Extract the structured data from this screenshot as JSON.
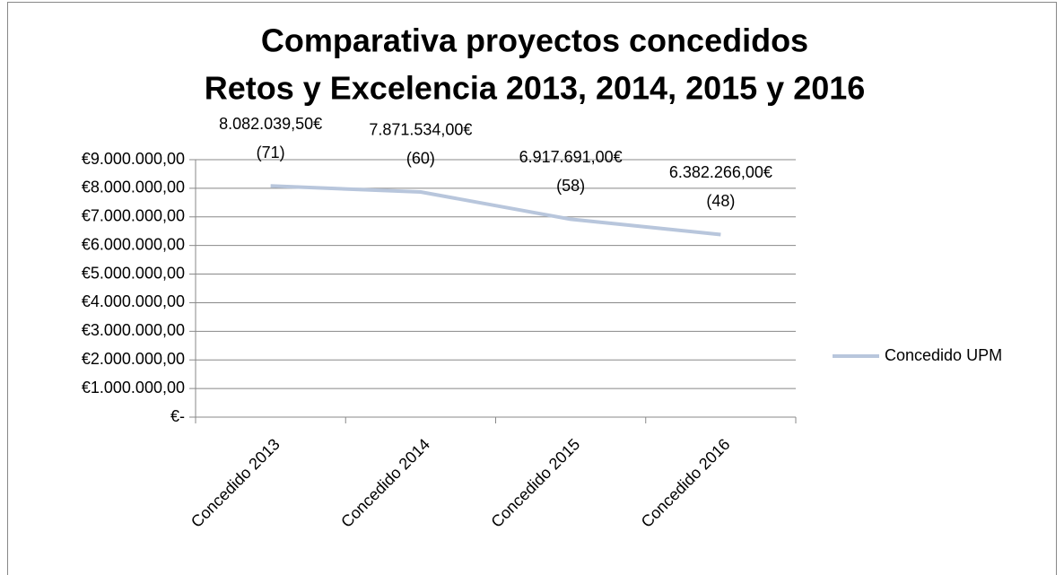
{
  "chart_data": {
    "type": "line",
    "title": [
      "Comparativa proyectos concedidos",
      "Retos y Excelencia 2013, 2014, 2015 y 2016"
    ],
    "categories": [
      "Concedido 2013",
      "Concedido 2014",
      "Concedido 2015",
      "Concedido 2016"
    ],
    "series": [
      {
        "name": "Concedido UPM",
        "color": "#b8c6dc",
        "values": [
          8082039.5,
          7871534,
          6917691,
          6382266
        ],
        "value_labels": [
          [
            "8.082.039,50€",
            "(71)"
          ],
          [
            "7.871.534,00€",
            "(60)"
          ],
          [
            "6.917.691,00€",
            "(58)"
          ],
          [
            "6.382.266,00€",
            "(48)"
          ]
        ]
      }
    ],
    "ylim": [
      0,
      9000000
    ],
    "yticks": [
      {
        "value": 0,
        "label": "€-"
      },
      {
        "value": 1000000,
        "label": "€1.000.000,00"
      },
      {
        "value": 2000000,
        "label": "€2.000.000,00"
      },
      {
        "value": 3000000,
        "label": "€3.000.000,00"
      },
      {
        "value": 4000000,
        "label": "€4.000.000,00"
      },
      {
        "value": 5000000,
        "label": "€5.000.000,00"
      },
      {
        "value": 6000000,
        "label": "€6.000.000,00"
      },
      {
        "value": 7000000,
        "label": "€7.000.000,00"
      },
      {
        "value": 8000000,
        "label": "€8.000.000,00"
      },
      {
        "value": 9000000,
        "label": "€9.000.000,00"
      }
    ],
    "grid": true,
    "legend": "right"
  }
}
